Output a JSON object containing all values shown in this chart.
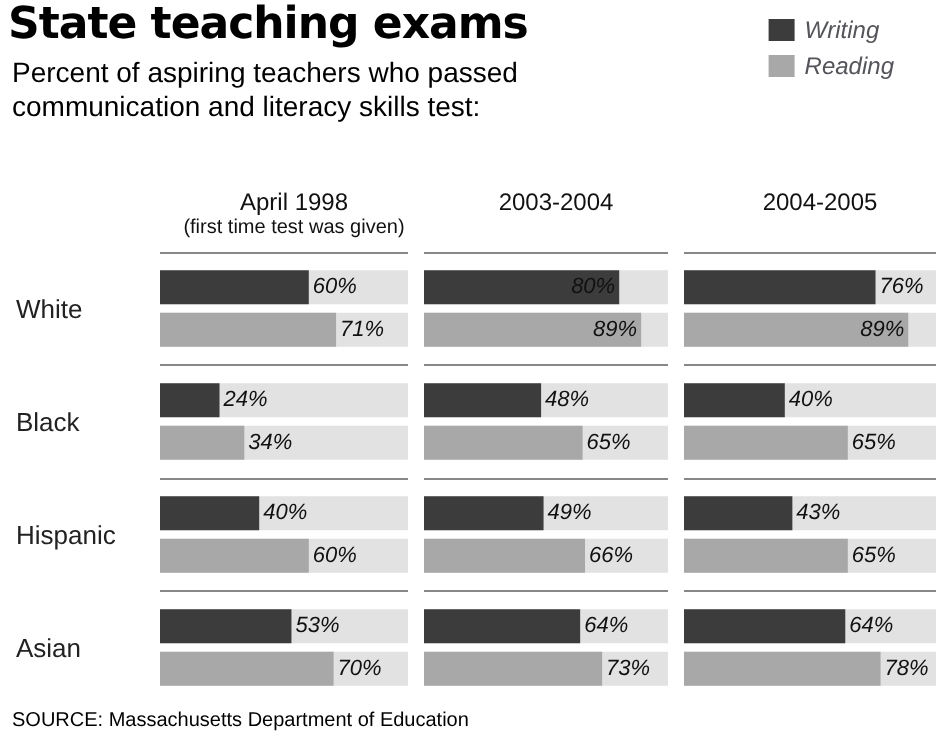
{
  "chart_data": [
    {
      "type": "other",
      "title": "State teaching exams",
      "subtitle": "Percent of aspiring teachers who passed communication and literacy skills test:",
      "annotations": [
        "SOURCE: Massachusetts Department of Education"
      ]
    },
    {
      "type": "bar",
      "orientation": "horizontal",
      "title": "April 1998",
      "subtitle": "(first time test was given)",
      "categories": [
        "White",
        "Black",
        "Hispanic",
        "Asian"
      ],
      "xlim": [
        0,
        100
      ],
      "tick_labels": "y",
      "grid": "y",
      "series": [
        {
          "color": "#3c3c3c",
          "values": [
            60,
            24,
            40,
            53
          ],
          "value_labels": [
            "60%",
            "24%",
            "40%",
            "53%"
          ]
        },
        {
          "color": "#a8a8a8",
          "values": [
            71,
            34,
            60,
            70
          ],
          "value_labels": [
            "71%",
            "34%",
            "60%",
            "70%"
          ]
        }
      ]
    },
    {
      "type": "bar",
      "orientation": "horizontal",
      "title": "2003-2004",
      "xlim": [
        0,
        100
      ],
      "tick_labels": false,
      "grid": "y",
      "series": [
        {
          "color": "#3c3c3c",
          "values": [
            80,
            48,
            49,
            64
          ],
          "value_labels": [
            "80%",
            "48%",
            "49%",
            "64%"
          ]
        },
        {
          "color": "#a8a8a8",
          "values": [
            89,
            65,
            66,
            73
          ],
          "value_labels": [
            "89%",
            "65%",
            "66%",
            "73%"
          ]
        }
      ]
    },
    {
      "type": "bar",
      "orientation": "horizontal",
      "title": "2004-2005",
      "xlim": [
        0,
        100
      ],
      "tick_labels": false,
      "grid": "y",
      "legend": "top right",
      "series": [
        {
          "name": "Writing",
          "color": "#3c3c3c",
          "values": [
            76,
            40,
            43,
            64
          ],
          "value_labels": [
            "76%",
            "40%",
            "43%",
            "64%"
          ]
        },
        {
          "name": "Reading",
          "color": "#a8a8a8",
          "values": [
            89,
            65,
            65,
            78
          ],
          "value_labels": [
            "89%",
            "65%",
            "65%",
            "78%"
          ]
        }
      ]
    }
  ]
}
